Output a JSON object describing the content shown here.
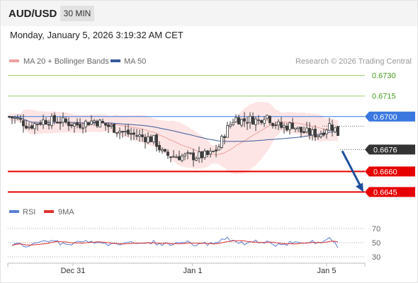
{
  "header": {
    "pair": "AUD/USD",
    "timeframe": "30 MIN"
  },
  "subheader": {
    "datetime": "Monday, January 5, 2026 3:19:32 AM CET"
  },
  "legend": {
    "ma20_bb": "MA 20 + Bollinger Bands",
    "ma50": "MA 50",
    "copyright": "Research © 2026 Trading Central",
    "rsi": "RSI",
    "rsi_ma": "9MA"
  },
  "colors": {
    "candle": "#3a3a3a",
    "candle_up": "#ffffff",
    "bollinger_fill": "#fde0e0",
    "ma20": "#f0a0a0",
    "ma50": "#3a5a9a",
    "resistance": "#9acd6a",
    "pivot": "#3a78e0",
    "support": "#e60000",
    "current": "#333333",
    "arrow": "#1f4f9a",
    "rsi": "#5a7fd6",
    "rsi_ma": "#e03030"
  },
  "chart_data": [
    {
      "type": "candlestick",
      "x": [
        "Dec 31",
        "Jan 1",
        "Jan 5"
      ],
      "ylim": [
        0.6638,
        0.6736
      ],
      "series": [
        {
          "name": "MA 20 + Bollinger Bands"
        },
        {
          "name": "MA 50"
        }
      ],
      "levels": [
        {
          "value": 0.673,
          "label": "0.6730",
          "kind": "resistance"
        },
        {
          "value": 0.6715,
          "label": "0.6715",
          "kind": "resistance"
        },
        {
          "value": 0.67,
          "label": "0.6700",
          "kind": "pivot"
        },
        {
          "value": 0.6676,
          "label": "0.6676",
          "kind": "current"
        },
        {
          "value": 0.666,
          "label": "0.6660",
          "kind": "support"
        },
        {
          "value": 0.6645,
          "label": "0.6645",
          "kind": "support"
        }
      ],
      "forecast": {
        "from": 0.6676,
        "to": 0.6645
      }
    },
    {
      "type": "line",
      "ylim": [
        25,
        80
      ],
      "yticks": [
        "70",
        "50",
        "30"
      ],
      "series": [
        {
          "name": "RSI"
        },
        {
          "name": "9MA"
        }
      ]
    }
  ]
}
